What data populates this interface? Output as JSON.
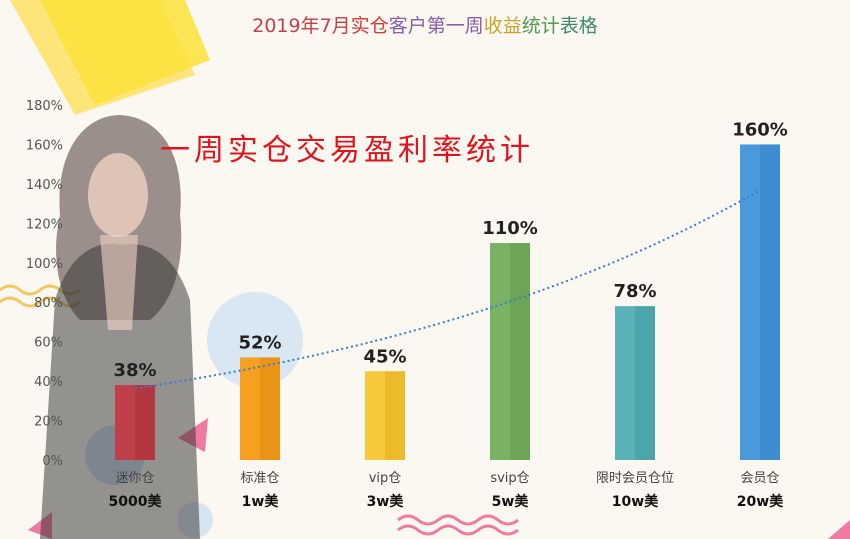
{
  "title_parts": [
    {
      "text": "2019年7月",
      "color": "#c2404a"
    },
    {
      "text": "实仓",
      "color": "#d33a3a"
    },
    {
      "text": "客户第一周",
      "color": "#8a5fa5"
    },
    {
      "text": "收益",
      "color": "#c8a632"
    },
    {
      "text": "统计",
      "color": "#4f9a4f"
    },
    {
      "text": "表格",
      "color": "#3f8a6a"
    }
  ],
  "subtitle": "一周实仓交易盈利率统计",
  "colors": {
    "bar_fill": [
      "#c0404a",
      "#f7a020",
      "#f6c83a",
      "#79b264",
      "#5ab2b8",
      "#4a9adb"
    ],
    "bar_shade": [
      "#a8303a",
      "#e08a10",
      "#e2b020",
      "#629a4e",
      "#3f9aa0",
      "#3484c8"
    ],
    "trend": "#3a7cc8",
    "axis_text": "#555555",
    "value_text": "#222222"
  },
  "chart_data": {
    "type": "bar",
    "categories": [
      "迷你仓",
      "标准仓",
      "vip仓",
      "svip仓",
      "限时会员仓位",
      "会员仓"
    ],
    "category_amounts": [
      "5000美",
      "1w美",
      "3w美",
      "5w美",
      "10w美",
      "20w美"
    ],
    "values": [
      38,
      52,
      45,
      110,
      78,
      160
    ],
    "value_labels": [
      "38%",
      "52%",
      "45%",
      "110%",
      "78%",
      "160%"
    ],
    "ylim": [
      0,
      180
    ],
    "yticks": [
      "0%",
      "20%",
      "40%",
      "60%",
      "80%",
      "100%",
      "120%",
      "140%",
      "160%",
      "180%"
    ],
    "trendline": "exponential, dotted",
    "grid": false,
    "legend": "none"
  }
}
